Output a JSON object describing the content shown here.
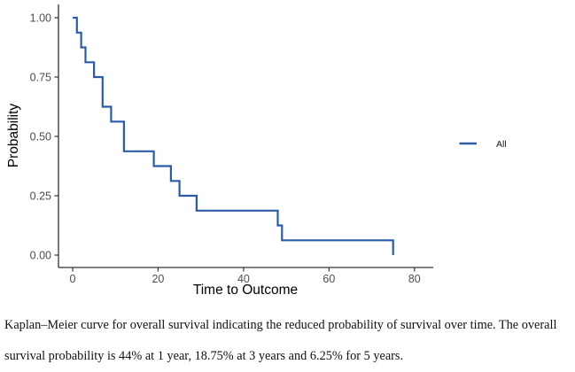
{
  "figure": {
    "caption_line1": "Kaplan–Meier curve for overall survival indicating the reduced probability of survival over time. The overall",
    "caption_line2": "survival probability is 44% at 1 year, 18.75% at 3 years and 6.25% for 5 years."
  },
  "colors": {
    "curve": "#2b5ca8",
    "axis": "#333333",
    "tick_label": "#4d4d4d",
    "text": "#000000",
    "background": "#ffffff"
  },
  "chart_data": {
    "type": "line",
    "subtype": "kaplan-meier-step",
    "title": "",
    "xlabel": "Time to Outcome",
    "ylabel": "Probability",
    "xlim": [
      0,
      80
    ],
    "ylim": [
      0,
      1
    ],
    "xticks": [
      0,
      20,
      40,
      60,
      80
    ],
    "xtick_labels": [
      "0",
      "20",
      "40",
      "60",
      "80"
    ],
    "yticks": [
      0,
      0.25,
      0.5,
      0.75,
      1
    ],
    "ytick_labels": [
      "0.00",
      "0.25",
      "0.50",
      "0.75",
      "1.00"
    ],
    "grid": false,
    "legend": {
      "position": "right",
      "entries": [
        {
          "label": "All",
          "color": "#2b5ca8"
        }
      ]
    },
    "series": [
      {
        "name": "All",
        "color": "#2b5ca8",
        "x": [
          0,
          1,
          2,
          3,
          5,
          7,
          9,
          12,
          19,
          23,
          25,
          29,
          48,
          49,
          75
        ],
        "y": [
          1.0,
          0.9375,
          0.875,
          0.8125,
          0.75,
          0.625,
          0.5625,
          0.4375,
          0.375,
          0.3125,
          0.25,
          0.1875,
          0.125,
          0.0625,
          0.0
        ]
      }
    ],
    "notes_from_caption": {
      "survival_at_1_year": "44%",
      "survival_at_3_years": "18.75%",
      "survival_at_5_years": "6.25%"
    }
  }
}
